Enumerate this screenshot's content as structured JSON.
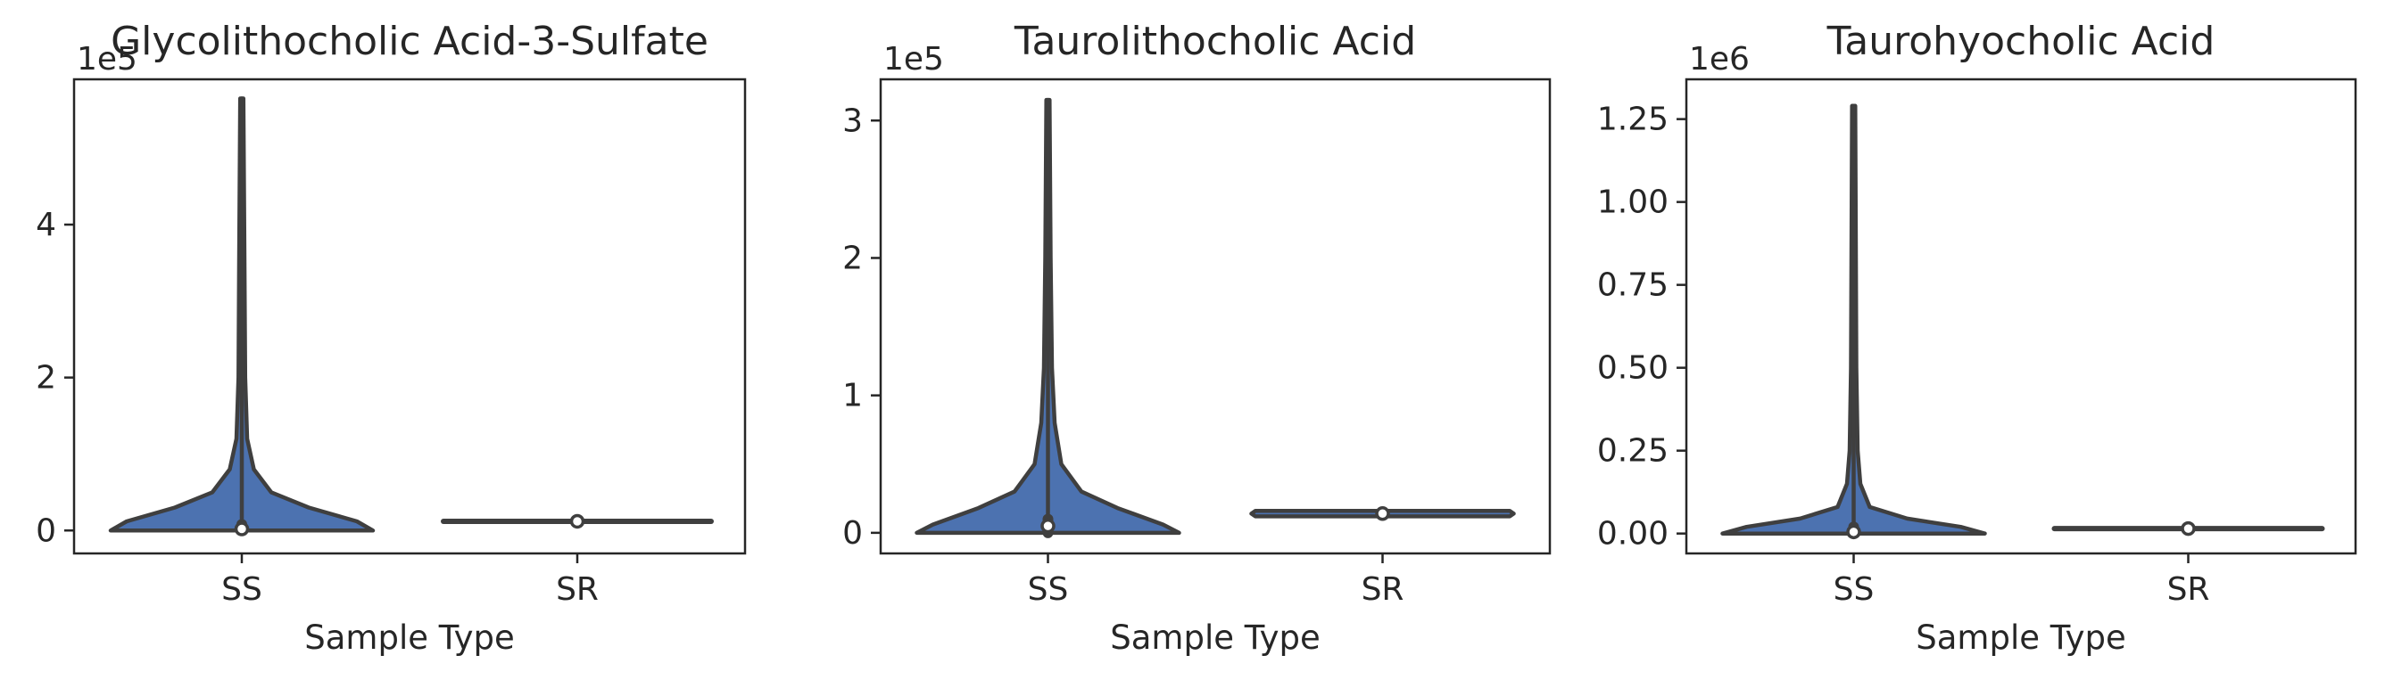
{
  "chart_data": [
    {
      "type": "violin",
      "title": "Glycolithocholic Acid-3-Sulfate",
      "xlabel": "Sample Type",
      "ylabel": "",
      "offset_label": "1e5",
      "categories": [
        "SS",
        "SR"
      ],
      "ylim": [
        -0.3,
        5.9
      ],
      "yticks": [
        0,
        2,
        4
      ],
      "ytick_labels": [
        "0",
        "2",
        "4"
      ],
      "series": [
        {
          "category": "SS",
          "max": 5.65,
          "q3": 0.08,
          "median": 0.02,
          "q1": 0.0,
          "min": 0.0,
          "profile": [
            [
              0.0,
              0.98
            ],
            [
              0.12,
              0.86
            ],
            [
              0.3,
              0.5
            ],
            [
              0.5,
              0.22
            ],
            [
              0.8,
              0.09
            ],
            [
              1.2,
              0.04
            ],
            [
              2.0,
              0.025
            ],
            [
              3.5,
              0.02
            ],
            [
              5.65,
              0.012
            ]
          ]
        },
        {
          "category": "SR",
          "max": 0.14,
          "q3": 0.125,
          "median": 0.12,
          "q1": 0.115,
          "min": 0.1,
          "profile": []
        }
      ]
    },
    {
      "type": "violin",
      "title": "Taurolithocholic Acid",
      "xlabel": "Sample Type",
      "ylabel": "",
      "offset_label": "1e5",
      "categories": [
        "SS",
        "SR"
      ],
      "ylim": [
        -0.15,
        3.3
      ],
      "yticks": [
        0,
        1,
        2,
        3
      ],
      "ytick_labels": [
        "0",
        "1",
        "2",
        "3"
      ],
      "series": [
        {
          "category": "SS",
          "max": 3.15,
          "q3": 0.1,
          "median": 0.05,
          "q1": 0.0,
          "min": 0.0,
          "profile": [
            [
              0.0,
              0.98
            ],
            [
              0.06,
              0.86
            ],
            [
              0.18,
              0.52
            ],
            [
              0.3,
              0.25
            ],
            [
              0.5,
              0.1
            ],
            [
              0.8,
              0.05
            ],
            [
              1.2,
              0.03
            ],
            [
              2.0,
              0.02
            ],
            [
              3.15,
              0.012
            ]
          ]
        },
        {
          "category": "SR",
          "max": 0.16,
          "q3": 0.15,
          "median": 0.14,
          "q1": 0.13,
          "min": 0.12,
          "profile": [
            [
              0.12,
              0.95
            ],
            [
              0.14,
              0.98
            ],
            [
              0.16,
              0.95
            ]
          ]
        }
      ]
    },
    {
      "type": "violin",
      "title": "Taurohyocholic Acid",
      "xlabel": "Sample Type",
      "ylabel": "",
      "offset_label": "1e6",
      "categories": [
        "SS",
        "SR"
      ],
      "ylim": [
        -0.06,
        1.37
      ],
      "yticks": [
        0.0,
        0.25,
        0.5,
        0.75,
        1.0,
        1.25
      ],
      "ytick_labels": [
        "0.00",
        "0.25",
        "0.50",
        "0.75",
        "1.00",
        "1.25"
      ],
      "series": [
        {
          "category": "SS",
          "max": 1.29,
          "q3": 0.02,
          "median": 0.005,
          "q1": 0.0,
          "min": 0.0,
          "profile": [
            [
              0.0,
              0.98
            ],
            [
              0.02,
              0.8
            ],
            [
              0.045,
              0.4
            ],
            [
              0.08,
              0.12
            ],
            [
              0.15,
              0.05
            ],
            [
              0.25,
              0.03
            ],
            [
              0.5,
              0.02
            ],
            [
              1.29,
              0.012
            ]
          ]
        },
        {
          "category": "SR",
          "max": 0.02,
          "q3": 0.016,
          "median": 0.015,
          "q1": 0.013,
          "min": 0.01,
          "profile": []
        }
      ]
    }
  ]
}
